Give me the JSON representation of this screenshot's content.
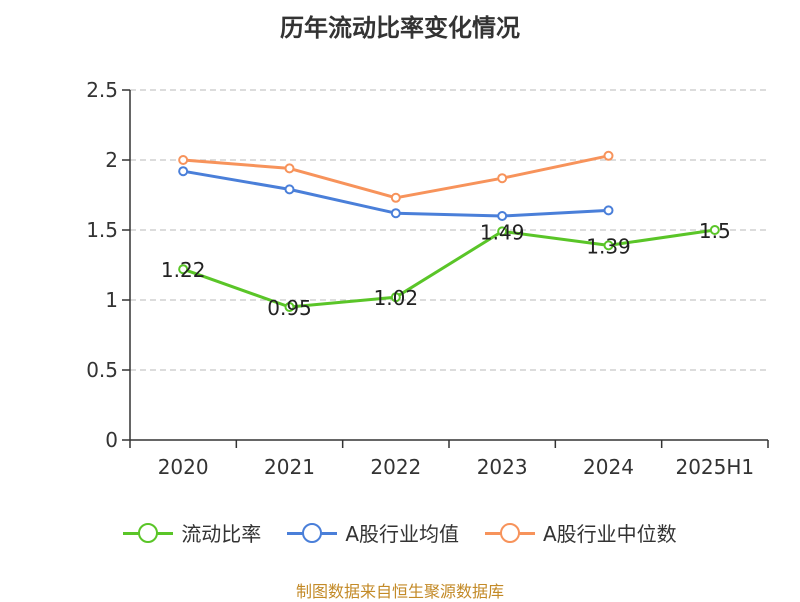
{
  "colors": {
    "current_ratio": "#5ac528",
    "industry_avg": "#4a7fd9",
    "industry_median": "#f7935b",
    "grid": "#c8c8c8",
    "axis": "#333333",
    "source": "#c38a27"
  },
  "chart_data": {
    "type": "line",
    "title": "历年流动比率变化情况",
    "categories": [
      "2020",
      "2021",
      "2022",
      "2023",
      "2024",
      "2025H1"
    ],
    "ylim": [
      0,
      2.5
    ],
    "yticks": [
      "0",
      "0.5",
      "1",
      "1.5",
      "2",
      "2.5"
    ],
    "grid": true,
    "legend_position": "bottom",
    "series": [
      {
        "name": "流动比率",
        "key": "current_ratio",
        "values": [
          1.22,
          0.95,
          1.02,
          1.49,
          1.39,
          1.5
        ],
        "labels": [
          "1.22",
          "0.95",
          "1.02",
          "1.49",
          "1.39",
          "1.5"
        ]
      },
      {
        "name": "A股行业均值",
        "key": "industry_avg",
        "values": [
          1.92,
          1.79,
          1.62,
          1.6,
          1.64,
          null
        ]
      },
      {
        "name": "A股行业中位数",
        "key": "industry_median",
        "values": [
          2.0,
          1.94,
          1.73,
          1.87,
          2.03,
          null
        ]
      }
    ]
  },
  "source": "制图数据来自恒生聚源数据库"
}
